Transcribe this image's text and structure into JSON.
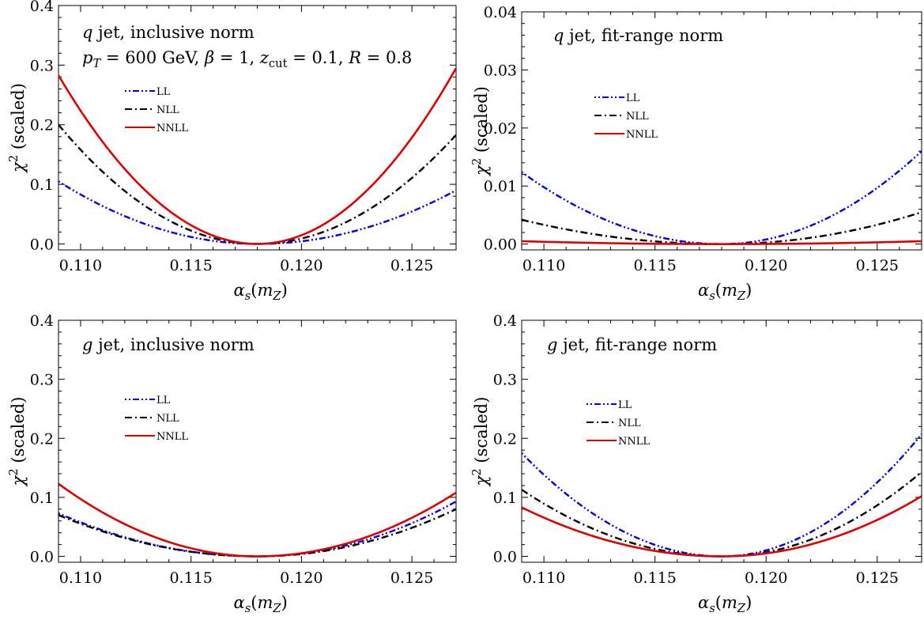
{
  "chart_data": [
    {
      "type": "line",
      "annotation_lines": [
        "q jet, inclusive norm",
        "p_T = 600 GeV, β = 1, z_cut = 0.1, R = 0.8"
      ],
      "xlabel": "α_s(m_Z)",
      "ylabel": "χ² (scaled)",
      "xlim": [
        0.109,
        0.127
      ],
      "ylim": [
        -0.01,
        0.4
      ],
      "xticks": [
        "0.110",
        "0.115",
        "0.120",
        "0.125"
      ],
      "yticks": [
        "0.0",
        "0.1",
        "0.2",
        "0.3",
        "0.4"
      ],
      "legend_position": "upper-left",
      "x_min_point": 0.118,
      "series": [
        {
          "name": "LL",
          "color": "#0000ee",
          "dash": "dotdotdash",
          "left_value": 0.105,
          "right_value": 0.09
        },
        {
          "name": "NLL",
          "color": "#000000",
          "dash": "dashdot",
          "left_value": 0.2,
          "right_value": 0.183
        },
        {
          "name": "NNLL",
          "color": "#e00000",
          "dash": "solid",
          "left_value": 0.283,
          "right_value": 0.295
        }
      ]
    },
    {
      "type": "line",
      "annotation_lines": [
        "q jet, fit-range norm"
      ],
      "xlabel": "α_s(m_Z)",
      "ylabel": "χ² (scaled)",
      "xlim": [
        0.109,
        0.127
      ],
      "ylim": [
        -0.001,
        0.04
      ],
      "xticks": [
        "0.110",
        "0.115",
        "0.120",
        "0.125"
      ],
      "yticks": [
        "0.00",
        "0.01",
        "0.02",
        "0.03",
        "0.04"
      ],
      "legend_position": "upper-left",
      "x_min_point": 0.118,
      "series": [
        {
          "name": "LL",
          "color": "#0000ee",
          "dash": "dotdotdash",
          "left_value": 0.0124,
          "right_value": 0.016
        },
        {
          "name": "NLL",
          "color": "#000000",
          "dash": "dashdot",
          "left_value": 0.0042,
          "right_value": 0.0055
        },
        {
          "name": "NNLL",
          "color": "#e00000",
          "dash": "solid",
          "left_value": 0.0005,
          "right_value": 0.0005
        }
      ]
    },
    {
      "type": "line",
      "annotation_lines": [
        "g jet, inclusive norm"
      ],
      "xlabel": "α_s(m_Z)",
      "ylabel": "χ² (scaled)",
      "xlim": [
        0.109,
        0.127
      ],
      "ylim": [
        -0.01,
        0.4
      ],
      "xticks": [
        "0.110",
        "0.115",
        "0.120",
        "0.125"
      ],
      "yticks": [
        "0.0",
        "0.1",
        "0.2",
        "0.3",
        "0.4"
      ],
      "legend_position": "upper-left",
      "x_min_point": 0.118,
      "series": [
        {
          "name": "LL",
          "color": "#0000ee",
          "dash": "dotdotdash",
          "left_value": 0.073,
          "right_value": 0.093
        },
        {
          "name": "NLL",
          "color": "#000000",
          "dash": "dashdot",
          "left_value": 0.07,
          "right_value": 0.08
        },
        {
          "name": "NNLL",
          "color": "#e00000",
          "dash": "solid",
          "left_value": 0.123,
          "right_value": 0.108
        }
      ]
    },
    {
      "type": "line",
      "annotation_lines": [
        "g jet, fit-range norm"
      ],
      "xlabel": "α_s(m_Z)",
      "ylabel": "χ² (scaled)",
      "xlim": [
        0.109,
        0.127
      ],
      "ylim": [
        -0.01,
        0.4
      ],
      "xticks": [
        "0.110",
        "0.115",
        "0.120",
        "0.125"
      ],
      "yticks": [
        "0.0",
        "0.1",
        "0.2",
        "0.3",
        "0.4"
      ],
      "legend_position": "upper-left",
      "x_min_point": 0.118,
      "series": [
        {
          "name": "LL",
          "color": "#0000ee",
          "dash": "dotdotdash",
          "left_value": 0.175,
          "right_value": 0.207
        },
        {
          "name": "NLL",
          "color": "#000000",
          "dash": "dashdot",
          "left_value": 0.113,
          "right_value": 0.143
        },
        {
          "name": "NNLL",
          "color": "#e00000",
          "dash": "solid",
          "left_value": 0.083,
          "right_value": 0.102
        }
      ]
    }
  ]
}
